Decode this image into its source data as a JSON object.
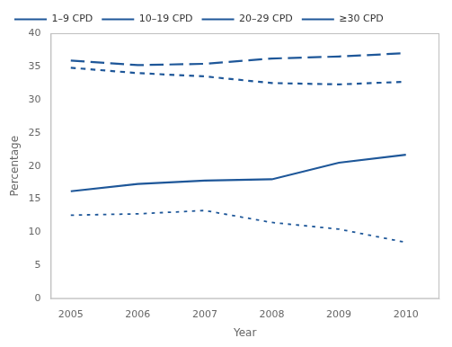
{
  "chart_data": {
    "type": "line",
    "x": [
      2005,
      2006,
      2007,
      2008,
      2009,
      2010
    ],
    "series": [
      {
        "name": "1–9 CPD",
        "values": [
          16.2,
          17.3,
          17.8,
          18.0,
          20.5,
          21.7
        ],
        "line_style": "solid"
      },
      {
        "name": "10–19 CPD",
        "values": [
          35.9,
          35.2,
          35.4,
          36.2,
          36.5,
          37.0
        ],
        "line_style": "dashed"
      },
      {
        "name": "20–29 CPD",
        "values": [
          34.8,
          34.0,
          33.5,
          32.5,
          32.3,
          32.7
        ],
        "line_style": "dotted"
      },
      {
        "name": "≥30 CPD",
        "values": [
          12.6,
          12.8,
          13.3,
          11.5,
          10.5,
          8.5
        ],
        "line_style": "thin_dotted"
      }
    ],
    "color": "#1e5799",
    "xlabel": "Year",
    "ylabel": "Percentage",
    "xlim": [
      2004.7,
      2010.5
    ],
    "xticks": [
      2005,
      2006,
      2007,
      2008,
      2009,
      2010
    ],
    "ylim": [
      0,
      40
    ],
    "yticks": [
      0,
      5,
      10,
      15,
      20,
      25,
      30,
      35,
      40
    ],
    "grid": false,
    "legend": "upper left"
  }
}
